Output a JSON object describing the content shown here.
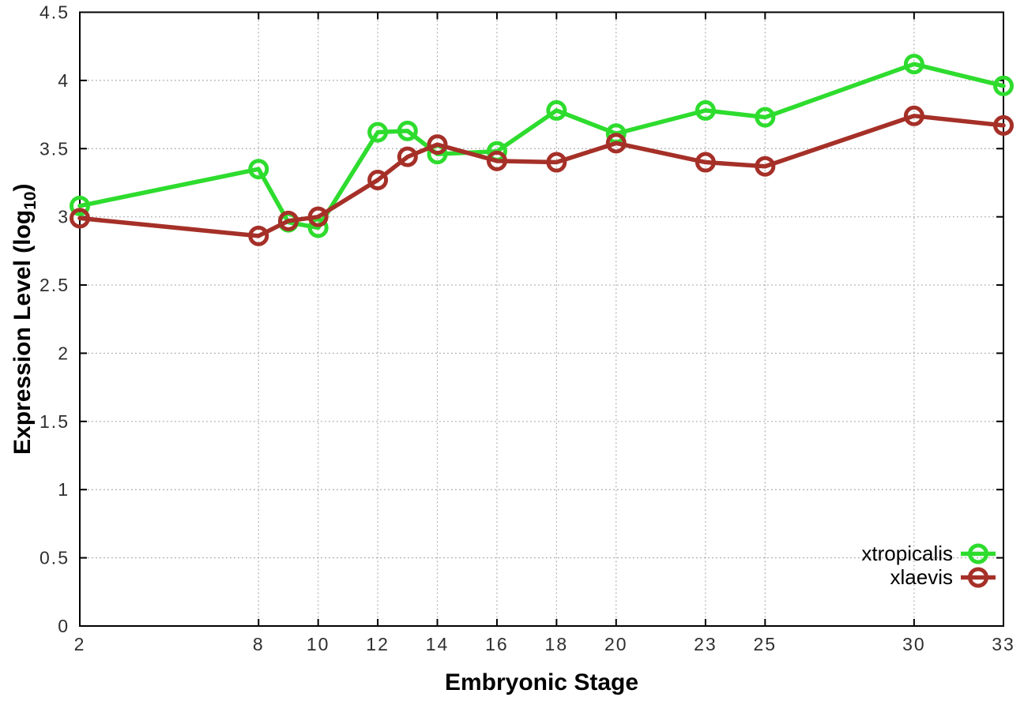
{
  "page": {
    "background": "#ffffff"
  },
  "chart_data": {
    "type": "line",
    "title": "",
    "xlabel": "Embryonic Stage",
    "ylabel": "Expression Level (log10)",
    "ylabel_main": "Expression Level (log",
    "ylabel_sub": "10",
    "ylabel_end": ")",
    "x": [
      2,
      8,
      9,
      10,
      12,
      13,
      14,
      16,
      18,
      20,
      23,
      25,
      30,
      33
    ],
    "series": [
      {
        "name": "xtropicalis",
        "color": "#2edc2e",
        "values": [
          3.08,
          3.35,
          2.96,
          2.92,
          3.62,
          3.63,
          3.46,
          3.48,
          3.78,
          3.61,
          3.78,
          3.73,
          4.12,
          3.96
        ]
      },
      {
        "name": "xlaevis",
        "color": "#a53028",
        "values": [
          2.99,
          2.86,
          2.97,
          3.0,
          3.27,
          3.44,
          3.53,
          3.41,
          3.4,
          3.54,
          3.4,
          3.37,
          3.74,
          3.67
        ]
      }
    ],
    "xlim": [
      2,
      33
    ],
    "ylim": [
      0,
      4.5
    ],
    "xticks": [
      2,
      8,
      10,
      12,
      14,
      16,
      18,
      20,
      23,
      25,
      30,
      33
    ],
    "yticks": [
      0,
      0.5,
      1,
      1.5,
      2,
      2.5,
      3,
      3.5,
      4,
      4.5
    ],
    "grid": true,
    "grid_style": "dotted",
    "marker": "open-circle",
    "legend": {
      "position": "bottom-right-inside",
      "entries": [
        "xtropicalis",
        "xlaevis"
      ]
    },
    "colors": {
      "axis": "#000000",
      "grid": "#a8a8a8",
      "tick_label": "#2f2f2f",
      "background": "#ffffff"
    }
  }
}
